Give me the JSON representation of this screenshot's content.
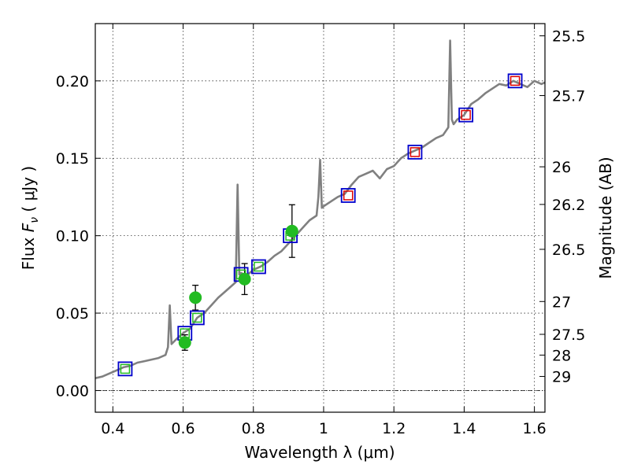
{
  "chart_data": {
    "type": "scatter",
    "xlabel": "Wavelength  λ (μm)",
    "ylabel": "Flux  F_ν  ( μJy )",
    "ylabel_parts": {
      "prefix": "Flux  ",
      "symbol": "F",
      "subscript": "ν",
      "suffix": "  ( μJy )"
    },
    "y2label": "Magnitude (AB)",
    "xlim": [
      0.35,
      1.63
    ],
    "ylim": [
      -0.014,
      0.237
    ],
    "x_ticks": [
      0.4,
      0.6,
      0.8,
      1.0,
      1.2,
      1.4,
      1.6
    ],
    "x_tick_labels": [
      "0.4",
      "0.6",
      "0.8",
      "1",
      "1.2",
      "1.4",
      "1.6"
    ],
    "y_ticks": [
      0.0,
      0.05,
      0.1,
      0.15,
      0.2
    ],
    "y_tick_labels": [
      "0.00",
      "0.05",
      "0.10",
      "0.15",
      "0.20"
    ],
    "y2_ticks": [
      {
        "label": "25.5",
        "flux": 0.2291
      },
      {
        "label": "25.7",
        "flux": 0.1905
      },
      {
        "label": "26",
        "flux": 0.1445
      },
      {
        "label": "26.2",
        "flux": 0.1202
      },
      {
        "label": "26.5",
        "flux": 0.0912
      },
      {
        "label": "27",
        "flux": 0.0575
      },
      {
        "label": "27.5",
        "flux": 0.0363
      },
      {
        "label": "28",
        "flux": 0.0229
      },
      {
        "label": "29",
        "flux": 0.0091
      }
    ],
    "grid": true,
    "zero_line": 0.0,
    "colors": {
      "model": "#808080",
      "green": "#22bb22",
      "blue": "#0000cc",
      "red": "#dd0000",
      "errorbar": "#000000",
      "axes": "#000000"
    },
    "series": [
      {
        "kind": "model_spectrum",
        "x": [
          0.35,
          0.37,
          0.39,
          0.41,
          0.43,
          0.45,
          0.47,
          0.49,
          0.51,
          0.53,
          0.55,
          0.557,
          0.562,
          0.567,
          0.58,
          0.6,
          0.62,
          0.64,
          0.66,
          0.68,
          0.7,
          0.72,
          0.74,
          0.75,
          0.755,
          0.76,
          0.765,
          0.78,
          0.8,
          0.82,
          0.84,
          0.86,
          0.88,
          0.9,
          0.92,
          0.94,
          0.96,
          0.98,
          0.985,
          0.99,
          0.995,
          1.0,
          1.02,
          1.04,
          1.06,
          1.08,
          1.1,
          1.12,
          1.14,
          1.16,
          1.18,
          1.2,
          1.22,
          1.24,
          1.26,
          1.28,
          1.3,
          1.32,
          1.34,
          1.355,
          1.36,
          1.365,
          1.37,
          1.38,
          1.4,
          1.42,
          1.44,
          1.46,
          1.48,
          1.5,
          1.52,
          1.54,
          1.56,
          1.58,
          1.6,
          1.62,
          1.63
        ],
        "y": [
          0.008,
          0.009,
          0.011,
          0.013,
          0.015,
          0.016,
          0.018,
          0.019,
          0.02,
          0.021,
          0.023,
          0.028,
          0.055,
          0.03,
          0.033,
          0.037,
          0.04,
          0.047,
          0.05,
          0.055,
          0.06,
          0.064,
          0.068,
          0.07,
          0.133,
          0.075,
          0.076,
          0.074,
          0.078,
          0.08,
          0.083,
          0.087,
          0.09,
          0.095,
          0.1,
          0.105,
          0.11,
          0.113,
          0.125,
          0.149,
          0.118,
          0.119,
          0.122,
          0.125,
          0.127,
          0.133,
          0.138,
          0.14,
          0.142,
          0.137,
          0.143,
          0.145,
          0.15,
          0.153,
          0.155,
          0.157,
          0.16,
          0.163,
          0.165,
          0.17,
          0.226,
          0.175,
          0.172,
          0.175,
          0.178,
          0.185,
          0.188,
          0.192,
          0.195,
          0.198,
          0.197,
          0.2,
          0.198,
          0.196,
          0.2,
          0.198,
          0.199
        ]
      },
      {
        "kind": "observed_points",
        "x": [
          0.605,
          0.635,
          0.775,
          0.91
        ],
        "y": [
          0.031,
          0.06,
          0.072,
          0.103
        ],
        "yerr": [
          0.005,
          0.008,
          0.01,
          0.017
        ]
      },
      {
        "kind": "blue_squares",
        "x": [
          0.435,
          0.605,
          0.64,
          0.765,
          0.815,
          0.905,
          1.07,
          1.26,
          1.405,
          1.545
        ],
        "y": [
          0.014,
          0.037,
          0.047,
          0.075,
          0.08,
          0.1,
          0.126,
          0.154,
          0.178,
          0.2
        ]
      },
      {
        "kind": "green_squares",
        "x": [
          0.435,
          0.605,
          0.64,
          0.765,
          0.815,
          0.905
        ],
        "y": [
          0.014,
          0.037,
          0.047,
          0.075,
          0.08,
          0.1
        ]
      },
      {
        "kind": "red_squares",
        "x": [
          1.07,
          1.26,
          1.405,
          1.545
        ],
        "y": [
          0.126,
          0.154,
          0.178,
          0.2
        ]
      }
    ]
  }
}
